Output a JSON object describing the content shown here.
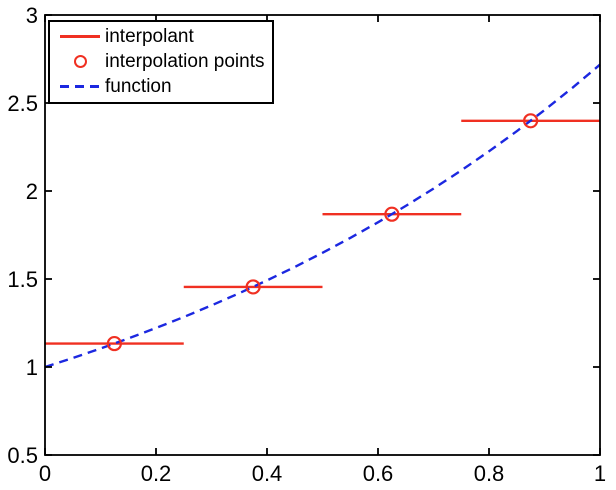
{
  "figure": {
    "background": "#ffffff"
  },
  "legend": {
    "position": "top-left",
    "entries": [
      {
        "swatch": "red-solid-line",
        "label": "interpolant"
      },
      {
        "swatch": "red-circle-marker",
        "label": "interpolation points"
      },
      {
        "swatch": "blue-dashed-line",
        "label": "function"
      }
    ]
  },
  "chart_data": {
    "type": "line",
    "title": "",
    "xlabel": "",
    "ylabel": "",
    "xlim": [
      0,
      1
    ],
    "ylim": [
      0.5,
      3
    ],
    "xticks": [
      0,
      0.2,
      0.4,
      0.6,
      0.8,
      1
    ],
    "xtick_labels": [
      "0",
      "0.2",
      "0.4",
      "0.6",
      "0.8",
      "1"
    ],
    "yticks": [
      0.5,
      1,
      1.5,
      2,
      2.5,
      3
    ],
    "ytick_labels": [
      "0.5",
      "1",
      "1.5",
      "2",
      "2.5",
      "3"
    ],
    "grid": false,
    "legend_position": "top-left",
    "colors": {
      "interpolant": "#f03022",
      "function": "#1c28e0",
      "axis": "#000000",
      "tick_label": "#000000"
    },
    "series": [
      {
        "name": "interpolant",
        "type": "hsegments",
        "color_key": "interpolant",
        "line_width": 2.4,
        "segments": [
          {
            "x1": 0.0,
            "x2": 0.25,
            "y": 1.1331
          },
          {
            "x1": 0.25,
            "x2": 0.5,
            "y": 1.455
          },
          {
            "x1": 0.5,
            "x2": 0.75,
            "y": 1.8682
          },
          {
            "x1": 0.75,
            "x2": 1.0,
            "y": 2.3989
          }
        ]
      },
      {
        "name": "function",
        "type": "dashed-line",
        "color_key": "function",
        "line_width": 2.4,
        "dash": "9 6",
        "formula": "exp(x)",
        "x": [
          0,
          0.05,
          0.1,
          0.15,
          0.2,
          0.25,
          0.3,
          0.35,
          0.4,
          0.45,
          0.5,
          0.55,
          0.6,
          0.65,
          0.7,
          0.75,
          0.8,
          0.85,
          0.9,
          0.95,
          1
        ],
        "y": [
          1.0,
          1.0513,
          1.1052,
          1.1618,
          1.2214,
          1.284,
          1.3499,
          1.4191,
          1.4918,
          1.5683,
          1.6487,
          1.7333,
          1.8221,
          1.9155,
          2.0138,
          2.117,
          2.2255,
          2.3396,
          2.4596,
          2.5857,
          2.7183
        ]
      },
      {
        "name": "interpolation points",
        "type": "circles",
        "color_key": "interpolant",
        "marker_radius": 6.5,
        "line_width": 2.2,
        "points": [
          {
            "x": 0.125,
            "y": 1.1331
          },
          {
            "x": 0.375,
            "y": 1.455
          },
          {
            "x": 0.625,
            "y": 1.8682
          },
          {
            "x": 0.875,
            "y": 2.3989
          }
        ]
      }
    ]
  }
}
